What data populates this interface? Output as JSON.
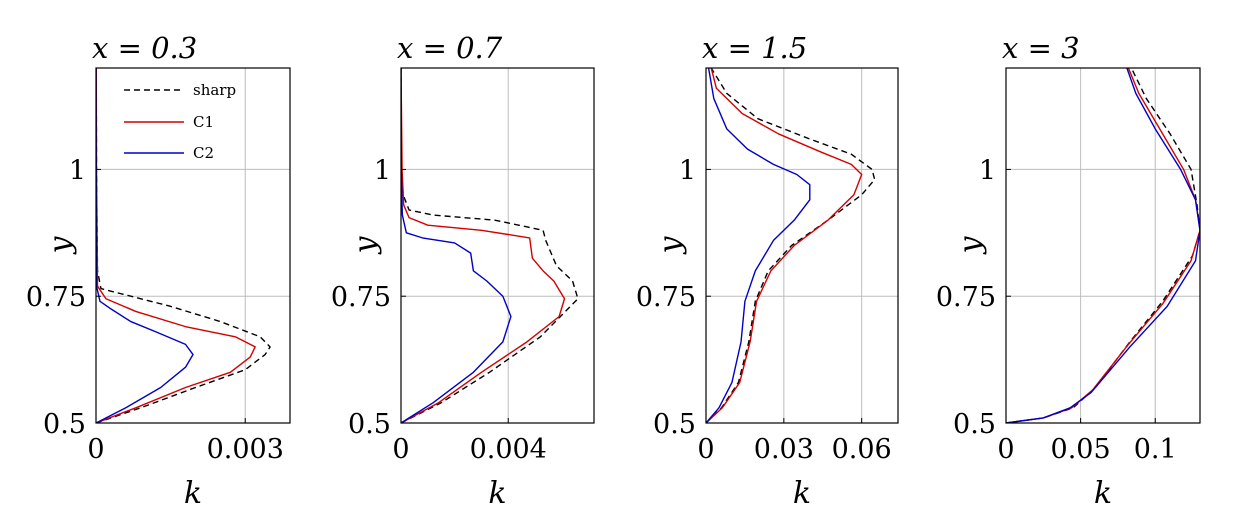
{
  "chart_data": [
    {
      "type": "line",
      "title": "x = 0.3",
      "xlabel": "k",
      "ylabel": "y",
      "xlim": [
        0,
        0.0039
      ],
      "ylim": [
        0.5,
        1.2
      ],
      "xticks": [
        0,
        0.003
      ],
      "xtick_labels": [
        "0",
        "0.003"
      ],
      "yticks": [
        0.5,
        0.75,
        1
      ],
      "ytick_labels": [
        "0.5",
        "0.75",
        "1"
      ],
      "grid": true,
      "legend": {
        "position": "top-right",
        "entries": [
          "sharp",
          "C1",
          "C2"
        ]
      },
      "series": [
        {
          "name": "sharp",
          "color": "#000000",
          "dash": "dashed",
          "points": [
            [
              0,
              0.5
            ],
            [
              0.0009,
              0.53
            ],
            [
              0.002,
              0.57
            ],
            [
              0.003,
              0.605
            ],
            [
              0.0034,
              0.635
            ],
            [
              0.0035,
              0.65
            ],
            [
              0.0033,
              0.67
            ],
            [
              0.0025,
              0.7
            ],
            [
              0.0015,
              0.73
            ],
            [
              0.0005,
              0.755
            ],
            [
              0.0001,
              0.765
            ],
            [
              3e-05,
              0.8
            ],
            [
              1e-05,
              1.0
            ],
            [
              5e-06,
              1.2
            ]
          ]
        },
        {
          "name": "C1",
          "color": "#d40000",
          "dash": "solid",
          "points": [
            [
              0,
              0.5
            ],
            [
              0.0008,
              0.53
            ],
            [
              0.0018,
              0.57
            ],
            [
              0.0027,
              0.6
            ],
            [
              0.0031,
              0.63
            ],
            [
              0.0032,
              0.65
            ],
            [
              0.0028,
              0.67
            ],
            [
              0.0018,
              0.69
            ],
            [
              0.0008,
              0.72
            ],
            [
              0.0002,
              0.745
            ],
            [
              3e-05,
              0.77
            ],
            [
              1e-05,
              1.0
            ],
            [
              5e-06,
              1.2
            ]
          ]
        },
        {
          "name": "C2",
          "color": "#0000c8",
          "dash": "solid",
          "points": [
            [
              0,
              0.5
            ],
            [
              0.0006,
              0.53
            ],
            [
              0.0013,
              0.57
            ],
            [
              0.0018,
              0.61
            ],
            [
              0.00195,
              0.635
            ],
            [
              0.0018,
              0.655
            ],
            [
              0.0012,
              0.68
            ],
            [
              0.0007,
              0.7
            ],
            [
              0.0003,
              0.725
            ],
            [
              8e-05,
              0.74
            ],
            [
              1e-05,
              0.77
            ],
            [
              5e-06,
              1.0
            ],
            [
              0,
              1.2
            ]
          ]
        }
      ]
    },
    {
      "type": "line",
      "title": "x = 0.7",
      "xlabel": "k",
      "ylabel": "y",
      "xlim": [
        0,
        0.0072
      ],
      "ylim": [
        0.5,
        1.2
      ],
      "xticks": [
        0,
        0.004
      ],
      "xtick_labels": [
        "0",
        "0.004"
      ],
      "yticks": [
        0.5,
        0.75,
        1
      ],
      "ytick_labels": [
        "0.5",
        "0.75",
        "1"
      ],
      "grid": true,
      "series": [
        {
          "name": "sharp",
          "color": "#000000",
          "dash": "dashed",
          "points": [
            [
              0,
              0.5
            ],
            [
              0.0015,
              0.54
            ],
            [
              0.0033,
              0.6
            ],
            [
              0.0052,
              0.67
            ],
            [
              0.0066,
              0.745
            ],
            [
              0.0064,
              0.78
            ],
            [
              0.0058,
              0.81
            ],
            [
              0.0054,
              0.86
            ],
            [
              0.0053,
              0.88
            ],
            [
              0.0035,
              0.9
            ],
            [
              0.0012,
              0.91
            ],
            [
              0.0003,
              0.92
            ],
            [
              8e-05,
              0.95
            ],
            [
              2e-05,
              1.0
            ],
            [
              0,
              1.2
            ]
          ]
        },
        {
          "name": "C1",
          "color": "#d40000",
          "dash": "solid",
          "points": [
            [
              0,
              0.5
            ],
            [
              0.0014,
              0.54
            ],
            [
              0.003,
              0.6
            ],
            [
              0.0047,
              0.66
            ],
            [
              0.0059,
              0.71
            ],
            [
              0.0061,
              0.745
            ],
            [
              0.0057,
              0.78
            ],
            [
              0.0053,
              0.8
            ],
            [
              0.0049,
              0.825
            ],
            [
              0.0048,
              0.865
            ],
            [
              0.003,
              0.88
            ],
            [
              0.001,
              0.89
            ],
            [
              0.0003,
              0.905
            ],
            [
              0.0001,
              0.93
            ],
            [
              4e-05,
              1.0
            ],
            [
              0,
              1.2
            ]
          ]
        },
        {
          "name": "C2",
          "color": "#0000c8",
          "dash": "solid",
          "points": [
            [
              0,
              0.5
            ],
            [
              0.0012,
              0.54
            ],
            [
              0.0027,
              0.6
            ],
            [
              0.0038,
              0.66
            ],
            [
              0.0041,
              0.71
            ],
            [
              0.0038,
              0.75
            ],
            [
              0.0032,
              0.78
            ],
            [
              0.0027,
              0.8
            ],
            [
              0.0026,
              0.835
            ],
            [
              0.002,
              0.855
            ],
            [
              0.0008,
              0.865
            ],
            [
              0.0002,
              0.875
            ],
            [
              5e-05,
              0.91
            ],
            [
              1e-05,
              1.0
            ],
            [
              0,
              1.2
            ]
          ]
        }
      ]
    },
    {
      "type": "line",
      "title": "x = 1.5",
      "xlabel": "k",
      "ylabel": "y",
      "xlim": [
        0,
        0.074
      ],
      "ylim": [
        0.5,
        1.2
      ],
      "xticks": [
        0,
        0.03,
        0.06
      ],
      "xtick_labels": [
        "0",
        "0.03",
        "0.06"
      ],
      "yticks": [
        0.5,
        0.75,
        1
      ],
      "ytick_labels": [
        "0.5",
        "0.75",
        "1"
      ],
      "grid": true,
      "series": [
        {
          "name": "sharp",
          "color": "#000000",
          "dash": "dashed",
          "points": [
            [
              0,
              0.5
            ],
            [
              0.006,
              0.53
            ],
            [
              0.0125,
              0.58
            ],
            [
              0.0165,
              0.66
            ],
            [
              0.019,
              0.74
            ],
            [
              0.024,
              0.8
            ],
            [
              0.033,
              0.85
            ],
            [
              0.047,
              0.9
            ],
            [
              0.06,
              0.95
            ],
            [
              0.065,
              0.98
            ],
            [
              0.064,
              1.0
            ],
            [
              0.056,
              1.03
            ],
            [
              0.04,
              1.06
            ],
            [
              0.02,
              1.1
            ],
            [
              0.008,
              1.15
            ],
            [
              0.002,
              1.2
            ]
          ]
        },
        {
          "name": "C1",
          "color": "#d40000",
          "dash": "solid",
          "points": [
            [
              0,
              0.5
            ],
            [
              0.0063,
              0.53
            ],
            [
              0.013,
              0.58
            ],
            [
              0.017,
              0.66
            ],
            [
              0.0195,
              0.74
            ],
            [
              0.025,
              0.8
            ],
            [
              0.034,
              0.85
            ],
            [
              0.047,
              0.9
            ],
            [
              0.057,
              0.95
            ],
            [
              0.06,
              0.99
            ],
            [
              0.056,
              1.01
            ],
            [
              0.044,
              1.035
            ],
            [
              0.028,
              1.07
            ],
            [
              0.014,
              1.11
            ],
            [
              0.004,
              1.16
            ],
            [
              0.002,
              1.2
            ]
          ]
        },
        {
          "name": "C2",
          "color": "#0000c8",
          "dash": "solid",
          "points": [
            [
              0,
              0.5
            ],
            [
              0.005,
              0.53
            ],
            [
              0.01,
              0.58
            ],
            [
              0.0135,
              0.66
            ],
            [
              0.015,
              0.74
            ],
            [
              0.019,
              0.8
            ],
            [
              0.026,
              0.86
            ],
            [
              0.034,
              0.9
            ],
            [
              0.04,
              0.94
            ],
            [
              0.04,
              0.97
            ],
            [
              0.035,
              0.99
            ],
            [
              0.026,
              1.01
            ],
            [
              0.016,
              1.04
            ],
            [
              0.008,
              1.08
            ],
            [
              0.003,
              1.14
            ],
            [
              0.001,
              1.2
            ]
          ]
        }
      ]
    },
    {
      "type": "line",
      "title": "x = 3",
      "xlabel": "k",
      "ylabel": "y",
      "xlim": [
        0,
        0.13
      ],
      "ylim": [
        0.5,
        1.2
      ],
      "xticks": [
        0,
        0.05,
        0.1
      ],
      "xtick_labels": [
        "0",
        "0.05",
        "0.1"
      ],
      "yticks": [
        0.5,
        0.75,
        1
      ],
      "ytick_labels": [
        "0.5",
        "0.75",
        "1"
      ],
      "grid": true,
      "series": [
        {
          "name": "sharp",
          "color": "#000000",
          "dash": "dashed",
          "points": [
            [
              0,
              0.5
            ],
            [
              0.025,
              0.51
            ],
            [
              0.045,
              0.53
            ],
            [
              0.06,
              0.57
            ],
            [
              0.083,
              0.66
            ],
            [
              0.105,
              0.74
            ],
            [
              0.125,
              0.83
            ],
            [
              0.13,
              0.88
            ],
            [
              0.128,
              0.93
            ],
            [
              0.124,
              1.0
            ],
            [
              0.11,
              1.07
            ],
            [
              0.094,
              1.14
            ],
            [
              0.084,
              1.2
            ]
          ]
        },
        {
          "name": "C1",
          "color": "#d40000",
          "dash": "solid",
          "points": [
            [
              0,
              0.5
            ],
            [
              0.025,
              0.51
            ],
            [
              0.044,
              0.53
            ],
            [
              0.058,
              0.565
            ],
            [
              0.082,
              0.655
            ],
            [
              0.105,
              0.735
            ],
            [
              0.124,
              0.82
            ],
            [
              0.13,
              0.88
            ],
            [
              0.127,
              0.94
            ],
            [
              0.119,
              1.0
            ],
            [
              0.103,
              1.08
            ],
            [
              0.089,
              1.15
            ],
            [
              0.082,
              1.2
            ]
          ]
        },
        {
          "name": "C2",
          "color": "#0000c8",
          "dash": "solid",
          "points": [
            [
              0,
              0.5
            ],
            [
              0.025,
              0.51
            ],
            [
              0.043,
              0.53
            ],
            [
              0.057,
              0.56
            ],
            [
              0.083,
              0.65
            ],
            [
              0.108,
              0.73
            ],
            [
              0.127,
              0.82
            ],
            [
              0.13,
              0.88
            ],
            [
              0.127,
              0.94
            ],
            [
              0.117,
              1.0
            ],
            [
              0.1,
              1.08
            ],
            [
              0.087,
              1.15
            ],
            [
              0.081,
              1.2
            ]
          ]
        }
      ]
    }
  ]
}
